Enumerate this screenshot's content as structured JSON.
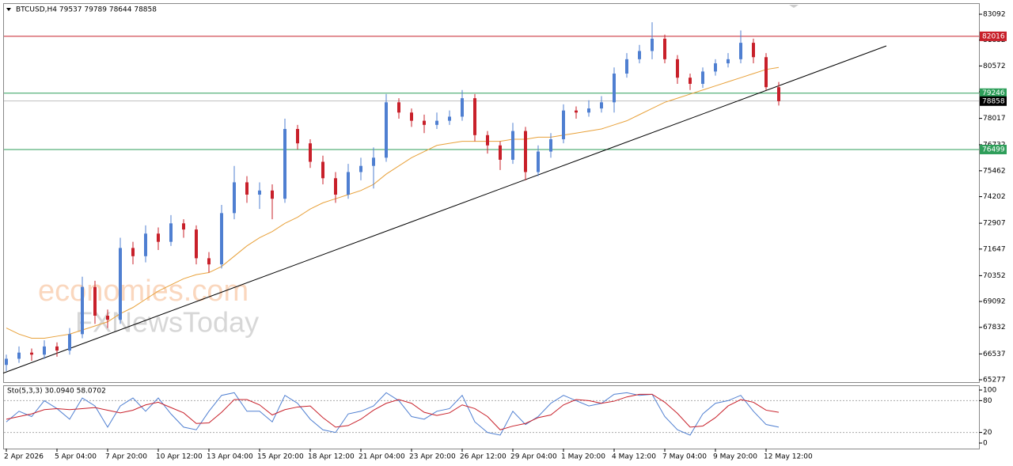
{
  "chart_data": {
    "type": "candlestick",
    "title": "BTCUSD,H4  79537 79789 78644 78858",
    "watermark": [
      "economies.com",
      "FXNewsToday"
    ],
    "up_color": "#4f7fd1",
    "down_color": "#c8202a",
    "categories": [
      "2 Apr 2026",
      null,
      null,
      null,
      "5 Apr 04:00",
      null,
      null,
      null,
      "7 Apr 20:00",
      null,
      null,
      null,
      "10 Apr 12:00",
      null,
      null,
      null,
      "13 Apr 04:00",
      null,
      null,
      null,
      "15 Apr 20:00",
      null,
      null,
      null,
      "18 Apr 12:00",
      null,
      null,
      null,
      "21 Apr 04:00",
      null,
      null,
      null,
      "23 Apr 20:00",
      null,
      null,
      null,
      "26 Apr 12:00",
      null,
      null,
      null,
      "29 Apr 04:00",
      null,
      null,
      null,
      "1 May 20:00",
      null,
      null,
      null,
      "4 May 12:00",
      null,
      null,
      null,
      "7 May 04:00",
      null,
      null,
      null,
      "9 May 20:00",
      null,
      null,
      null,
      "12 May 12:00",
      null
    ],
    "ohlc": [
      [
        66000,
        66500,
        65700,
        66300
      ],
      [
        66300,
        66900,
        66100,
        66600
      ],
      [
        66600,
        66800,
        66200,
        66500
      ],
      [
        66500,
        67200,
        66300,
        66900
      ],
      [
        66900,
        67100,
        66400,
        66700
      ],
      [
        66700,
        67800,
        66500,
        67500
      ],
      [
        67500,
        70300,
        67300,
        69800
      ],
      [
        69800,
        70100,
        68000,
        68400
      ],
      [
        68400,
        68700,
        67800,
        68200
      ],
      [
        68200,
        72200,
        68000,
        71700
      ],
      [
        71700,
        72000,
        70900,
        71300
      ],
      [
        71300,
        72800,
        71000,
        72400
      ],
      [
        72400,
        72700,
        71600,
        72000
      ],
      [
        72000,
        73300,
        71800,
        72900
      ],
      [
        72900,
        73100,
        72200,
        72600
      ],
      [
        72600,
        72800,
        70900,
        71200
      ],
      [
        71200,
        71500,
        70500,
        70900
      ],
      [
        70900,
        73800,
        70700,
        73400
      ],
      [
        73400,
        75700,
        73100,
        74900
      ],
      [
        74900,
        75200,
        73900,
        74300
      ],
      [
        74300,
        74900,
        73600,
        74500
      ],
      [
        74500,
        74800,
        73100,
        74100
      ],
      [
        74100,
        78000,
        73900,
        77500
      ],
      [
        77500,
        77700,
        76500,
        76800
      ],
      [
        76800,
        77000,
        75600,
        75900
      ],
      [
        75900,
        76200,
        74800,
        75100
      ],
      [
        75100,
        75400,
        73900,
        74300
      ],
      [
        74300,
        75800,
        74100,
        75400
      ],
      [
        75400,
        76100,
        75000,
        75700
      ],
      [
        75700,
        76600,
        74600,
        76100
      ],
      [
        76100,
        79200,
        75900,
        78800
      ],
      [
        78800,
        79000,
        78000,
        78300
      ],
      [
        78300,
        78500,
        77600,
        77900
      ],
      [
        77900,
        78200,
        77300,
        77700
      ],
      [
        77700,
        78300,
        77500,
        77900
      ],
      [
        77900,
        78400,
        77700,
        78100
      ],
      [
        78100,
        79400,
        77900,
        79000
      ],
      [
        79000,
        79200,
        76900,
        77200
      ],
      [
        77200,
        77400,
        76300,
        76700
      ],
      [
        76700,
        76900,
        75500,
        76000
      ],
      [
        76000,
        77800,
        75800,
        77400
      ],
      [
        77400,
        77600,
        75000,
        75400
      ],
      [
        75400,
        76700,
        75200,
        76400
      ],
      [
        76400,
        77300,
        76100,
        77000
      ],
      [
        77000,
        78700,
        76800,
        78400
      ],
      [
        78400,
        78600,
        78000,
        78300
      ],
      [
        78300,
        78900,
        78100,
        78500
      ],
      [
        78500,
        79100,
        78300,
        78800
      ],
      [
        78800,
        80500,
        78300,
        80200
      ],
      [
        80200,
        81200,
        80000,
        80900
      ],
      [
        80900,
        81600,
        80700,
        81300
      ],
      [
        81300,
        82700,
        80900,
        81900
      ],
      [
        81900,
        82100,
        80700,
        80900
      ],
      [
        80900,
        81100,
        79700,
        80000
      ],
      [
        80000,
        80200,
        79400,
        79700
      ],
      [
        79700,
        80500,
        79500,
        80300
      ],
      [
        80300,
        80900,
        80100,
        80700
      ],
      [
        80700,
        81200,
        80500,
        80900
      ],
      [
        80900,
        82300,
        80700,
        81700
      ],
      [
        81700,
        81900,
        80700,
        81000
      ],
      [
        81000,
        81200,
        79400,
        79537
      ],
      [
        79537,
        79789,
        78644,
        78858
      ]
    ],
    "ma": {
      "color": "#e8a13a",
      "values": [
        67800,
        67500,
        67300,
        67300,
        67400,
        67500,
        67700,
        67900,
        68100,
        68500,
        68800,
        69200,
        69600,
        69900,
        70200,
        70400,
        70500,
        70800,
        71300,
        71800,
        72200,
        72500,
        72900,
        73200,
        73600,
        73900,
        74100,
        74300,
        74500,
        74800,
        75300,
        75700,
        76100,
        76400,
        76700,
        76800,
        76900,
        76900,
        76900,
        76900,
        77000,
        77000,
        77100,
        77100,
        77200,
        77300,
        77400,
        77500,
        77700,
        77900,
        78200,
        78500,
        78800,
        79000,
        79200,
        79400,
        79600,
        79800,
        80000,
        80200,
        80400,
        80500
      ]
    },
    "trendline": {
      "color": "#000000",
      "x": [
        0,
        69.5
      ],
      "y": [
        65600,
        81549
      ]
    },
    "levels": [
      {
        "value": 82016,
        "color": "#c8202a"
      },
      {
        "value": 79246,
        "color": "#2e9e5a"
      },
      {
        "value": 78858,
        "color": "#000000"
      },
      {
        "value": 76499,
        "color": "#2e9e5a"
      }
    ],
    "ylim": [
      65161,
      83632
    ],
    "yticks": [
      83092,
      81832,
      80572,
      79312,
      78017,
      76732,
      75462,
      74202,
      72907,
      71647,
      70352,
      69092,
      67832,
      66537,
      65277
    ],
    "stochastic": {
      "label": "Sto(5,3,3) 30.0940 58.0702",
      "ylim": [
        0,
        100
      ],
      "yticks": [
        100,
        80,
        20,
        0
      ],
      "levels": [
        80,
        20
      ],
      "series": [
        {
          "color": "#4f7fd1",
          "values": [
            40,
            60,
            50,
            80,
            65,
            45,
            85,
            70,
            30,
            70,
            85,
            60,
            85,
            55,
            30,
            25,
            60,
            90,
            95,
            60,
            60,
            40,
            90,
            75,
            45,
            25,
            20,
            55,
            60,
            70,
            95,
            80,
            50,
            45,
            60,
            65,
            90,
            40,
            20,
            15,
            60,
            35,
            50,
            75,
            90,
            80,
            70,
            75,
            92,
            95,
            90,
            92,
            50,
            25,
            15,
            55,
            75,
            80,
            90,
            60,
            35,
            30.094
          ]
        },
        {
          "color": "#c8202a",
          "values": [
            45,
            50,
            55,
            63,
            65,
            63,
            65,
            67,
            62,
            57,
            62,
            72,
            77,
            67,
            57,
            37,
            38,
            58,
            82,
            82,
            72,
            53,
            63,
            68,
            70,
            48,
            30,
            33,
            45,
            62,
            75,
            82,
            75,
            58,
            52,
            57,
            72,
            65,
            50,
            25,
            32,
            37,
            48,
            53,
            72,
            82,
            80,
            75,
            79,
            87,
            92,
            92,
            77,
            56,
            30,
            32,
            48,
            70,
            82,
            77,
            62,
            58.0702
          ]
        }
      ]
    }
  }
}
